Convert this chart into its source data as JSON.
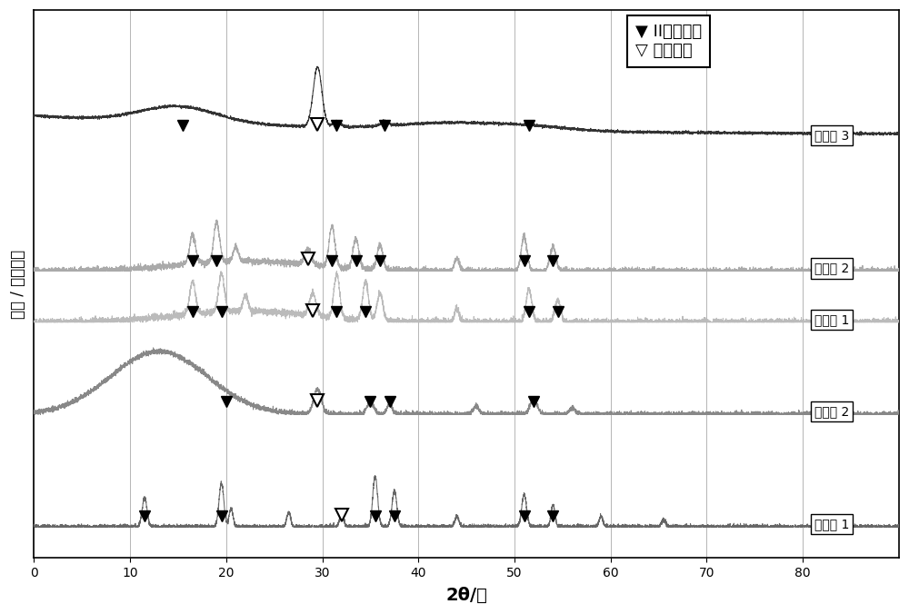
{
  "xlabel": "2θ/度",
  "ylabel": "强度 / 任意单位",
  "xlim": [
    0,
    90
  ],
  "xticks": [
    0,
    10,
    20,
    30,
    40,
    50,
    60,
    70,
    80
  ],
  "background_color": "#ffffff",
  "series_labels": [
    "实施例 3",
    "实施例 2",
    "实施例 1",
    "比较例 2",
    "比较例 1"
  ],
  "legend_line1": "▼ II型包合物",
  "legend_line2": "▽ 金刚石型",
  "offsets": [
    0.8,
    0.54,
    0.44,
    0.26,
    0.04
  ],
  "scales": [
    0.14,
    0.1,
    0.1,
    0.13,
    0.1
  ],
  "colors": [
    "#333333",
    "#aaaaaa",
    "#bbbbbb",
    "#888888",
    "#666666"
  ],
  "black_markers": {
    "0": [
      15.5,
      31.5,
      36.5,
      51.5
    ],
    "1": [
      16.5,
      19.0,
      31.0,
      33.5,
      36.0,
      51.0,
      54.0
    ],
    "2": [
      16.5,
      19.5,
      31.5,
      34.5,
      51.5,
      54.5
    ],
    "3": [
      20.0,
      35.0,
      37.0,
      52.0
    ],
    "4": [
      11.5,
      19.5,
      35.5,
      37.5,
      51.0,
      54.0
    ]
  },
  "white_markers": {
    "0": [
      29.5
    ],
    "1": [
      28.5
    ],
    "2": [
      29.0
    ],
    "3": [
      29.5
    ],
    "4": [
      32.0
    ]
  },
  "marker_above": [
    0.018,
    0.016,
    0.016,
    0.018,
    0.016
  ]
}
